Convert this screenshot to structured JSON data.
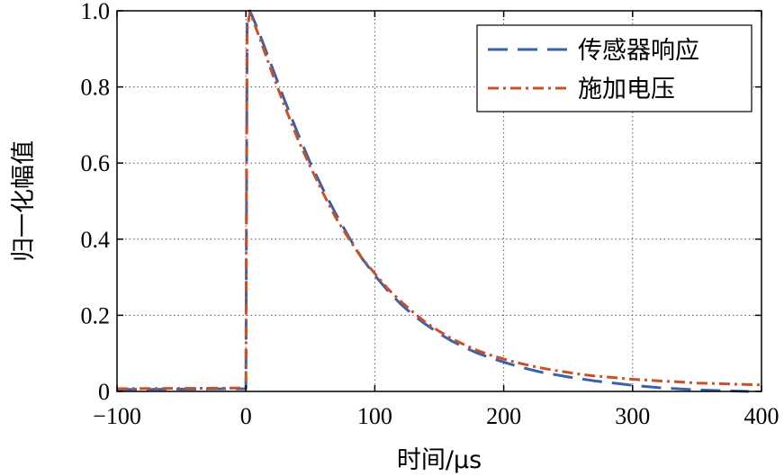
{
  "chart_data": {
    "type": "line",
    "title": "",
    "xlabel": "时间/μs",
    "ylabel": "归一化幅值",
    "xlim": [
      -100,
      400
    ],
    "ylim": [
      0,
      1.0
    ],
    "xticks": [
      -100,
      0,
      100,
      200,
      300,
      400
    ],
    "xtick_labels": [
      "−100",
      "0",
      "100",
      "200",
      "300",
      "400"
    ],
    "yticks": [
      0,
      0.2,
      0.4,
      0.6,
      0.8,
      1.0
    ],
    "ytick_labels": [
      "0",
      "0.2",
      "0.4",
      "0.6",
      "0.8",
      "1.0"
    ],
    "grid": true,
    "legend_position": "top-right",
    "series": [
      {
        "name": "传感器响应",
        "color": "#3a62a8",
        "style": "dashed",
        "x": [
          -100,
          -50,
          0,
          0.5,
          1,
          3,
          5,
          10,
          20,
          30,
          40,
          50,
          60,
          70,
          80,
          90,
          100,
          110,
          120,
          130,
          140,
          150,
          160,
          170,
          180,
          190,
          200,
          210,
          220,
          230,
          240,
          250,
          260,
          270,
          280,
          290,
          300,
          310,
          320,
          330,
          340,
          350,
          360,
          370,
          380,
          390
        ],
        "y": [
          0.005,
          0.006,
          0.007,
          0.5,
          0.97,
          1.0,
          0.985,
          0.945,
          0.855,
          0.765,
          0.68,
          0.6,
          0.53,
          0.465,
          0.405,
          0.35,
          0.305,
          0.265,
          0.23,
          0.2,
          0.175,
          0.152,
          0.132,
          0.115,
          0.1,
          0.088,
          0.077,
          0.067,
          0.058,
          0.05,
          0.044,
          0.038,
          0.033,
          0.028,
          0.024,
          0.02,
          0.016,
          0.013,
          0.01,
          0.008,
          0.006,
          0.004,
          0.003,
          0.002,
          0.001,
          0.0
        ]
      },
      {
        "name": "施加电压",
        "color": "#c9502a",
        "style": "dashdot",
        "x": [
          -100,
          -50,
          0,
          0.5,
          1,
          3,
          5,
          10,
          20,
          30,
          40,
          50,
          60,
          70,
          80,
          90,
          100,
          110,
          120,
          130,
          140,
          150,
          160,
          170,
          180,
          190,
          200,
          210,
          220,
          230,
          240,
          250,
          260,
          270,
          280,
          290,
          300,
          310,
          320,
          330,
          340,
          350,
          360,
          370,
          380,
          390,
          400
        ],
        "y": [
          0.007,
          0.008,
          0.009,
          0.6,
          0.95,
          0.995,
          0.98,
          0.935,
          0.84,
          0.75,
          0.665,
          0.59,
          0.52,
          0.455,
          0.4,
          0.35,
          0.31,
          0.27,
          0.237,
          0.207,
          0.18,
          0.158,
          0.138,
          0.122,
          0.107,
          0.095,
          0.085,
          0.076,
          0.068,
          0.061,
          0.055,
          0.05,
          0.045,
          0.041,
          0.038,
          0.035,
          0.032,
          0.03,
          0.028,
          0.026,
          0.024,
          0.022,
          0.021,
          0.02,
          0.019,
          0.018,
          0.017
        ]
      }
    ]
  }
}
